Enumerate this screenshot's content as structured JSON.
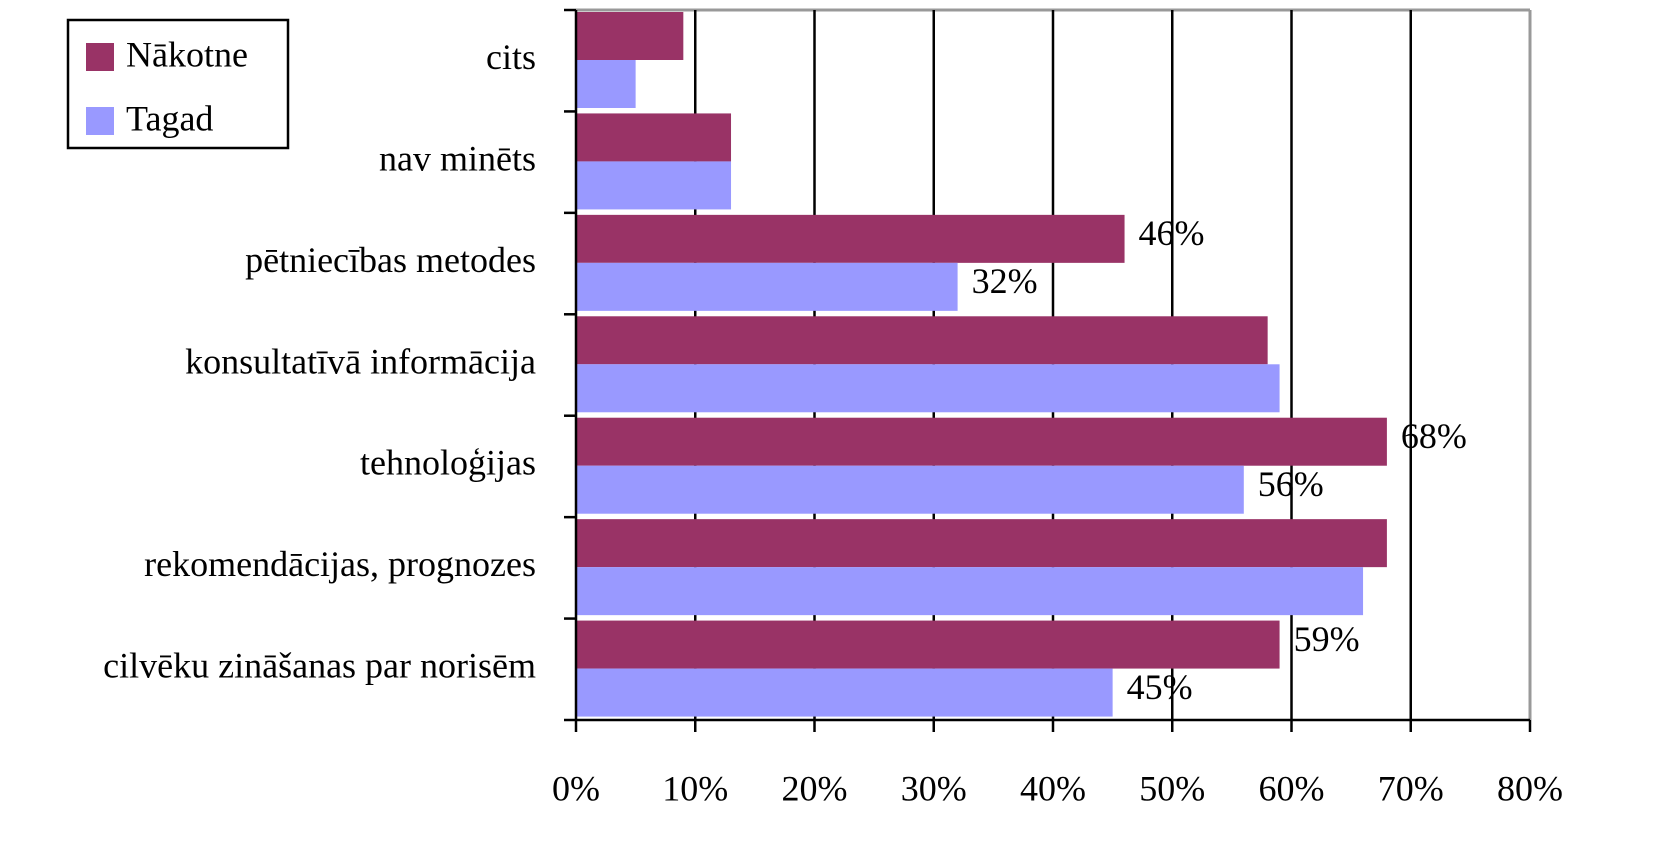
{
  "chart_data": {
    "type": "bar",
    "orientation": "horizontal",
    "categories": [
      "cits",
      "nav minēts",
      "pētniecības metodes",
      "konsultatīvā informācija",
      "tehnoloģijas",
      "rekomendācijas, prognozes",
      "cilvēku zināšanas par norisēm"
    ],
    "series": [
      {
        "name": "Nākotne",
        "color": "#993366",
        "values": [
          9,
          13,
          46,
          58,
          68,
          68,
          59
        ],
        "value_labels": [
          null,
          null,
          "46%",
          null,
          "68%",
          null,
          "59%"
        ]
      },
      {
        "name": "Tagad",
        "color": "#9999ff",
        "values": [
          5,
          13,
          32,
          59,
          56,
          66,
          45
        ],
        "value_labels": [
          null,
          null,
          "32%",
          null,
          "56%",
          null,
          "45%"
        ]
      }
    ],
    "xlim": [
      0,
      80
    ],
    "xticks": [
      {
        "value": 0,
        "label": "0%"
      },
      {
        "value": 10,
        "label": "10%"
      },
      {
        "value": 20,
        "label": "20%"
      },
      {
        "value": 30,
        "label": "30%"
      },
      {
        "value": 40,
        "label": "40%"
      },
      {
        "value": 50,
        "label": "50%"
      },
      {
        "value": 60,
        "label": "60%"
      },
      {
        "value": 70,
        "label": "70%"
      },
      {
        "value": 80,
        "label": "80%"
      }
    ],
    "grid": true,
    "legend": "upper left"
  }
}
